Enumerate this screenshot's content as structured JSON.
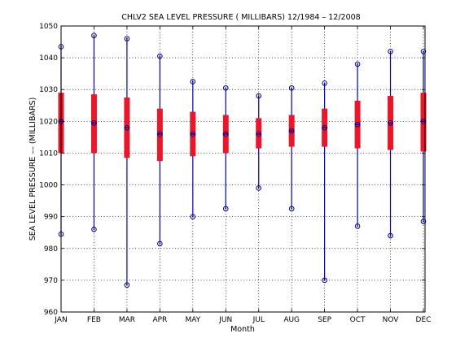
{
  "chart_data": {
    "type": "box",
    "title": "CHLV2  SEA LEVEL PRESSURE ( MILLIBARS) 12/1984 – 12/2008",
    "xlabel": "Month",
    "ylabel": "SEA LEVEL PRESSURE –– (MILLIBARS)",
    "ylim": [
      960,
      1050
    ],
    "yticks": [
      960,
      970,
      980,
      990,
      1000,
      1010,
      1020,
      1030,
      1040,
      1050
    ],
    "grid": true,
    "categories": [
      "JAN",
      "FEB",
      "MAR",
      "APR",
      "MAY",
      "JUN",
      "JUL",
      "AUG",
      "SEP",
      "OCT",
      "NOV",
      "DEC"
    ],
    "series": [
      {
        "min": [
          984.5,
          986.0,
          968.5,
          981.5,
          990.0,
          992.5,
          999.0,
          992.5,
          970.0,
          987.0,
          984.0,
          988.5
        ],
        "q1": [
          1010.0,
          1010.0,
          1008.5,
          1007.5,
          1009.0,
          1010.0,
          1011.5,
          1012.0,
          1012.0,
          1011.5,
          1011.0,
          1010.5
        ],
        "median": [
          1020.0,
          1019.5,
          1018.0,
          1016.0,
          1016.0,
          1016.0,
          1016.0,
          1017.0,
          1018.0,
          1019.0,
          1019.5,
          1020.0
        ],
        "q3": [
          1029.0,
          1028.5,
          1027.5,
          1024.0,
          1023.0,
          1022.0,
          1021.0,
          1022.0,
          1024.0,
          1026.5,
          1028.0,
          1029.0
        ],
        "max": [
          1043.5,
          1047.0,
          1046.0,
          1040.5,
          1032.5,
          1030.5,
          1028.0,
          1030.5,
          1032.0,
          1038.0,
          1042.0,
          1042.0
        ]
      }
    ],
    "colors": {
      "whisker": "#0000b3",
      "box": "#e8172a",
      "marker": "#00008b",
      "grid": "#000000"
    }
  }
}
